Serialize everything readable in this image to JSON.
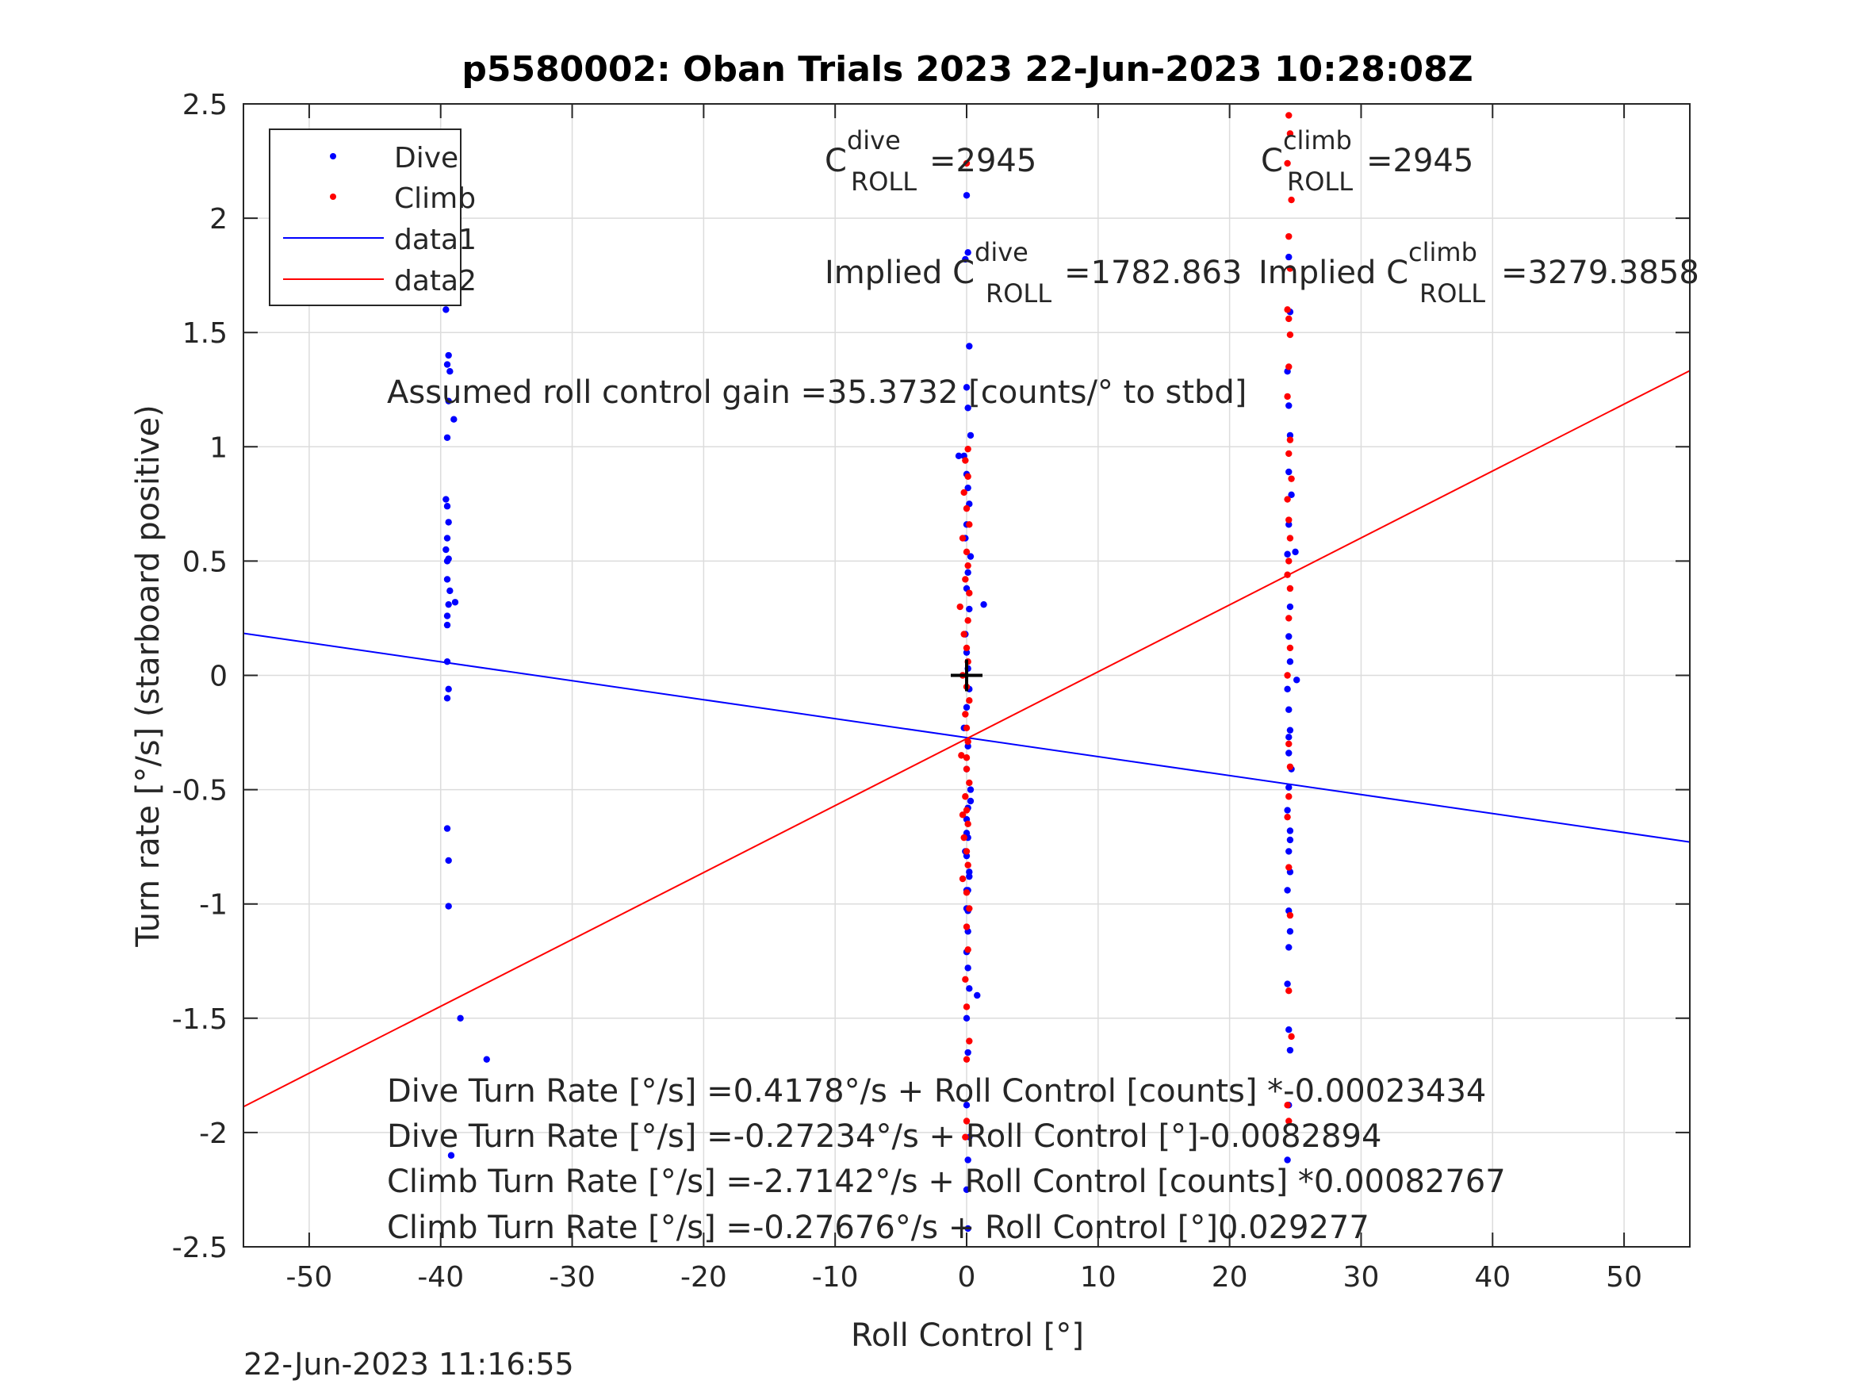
{
  "chart_data": {
    "type": "scatter",
    "title": "p5580002: Oban Trials 2023 22-Jun-2023 10:28:08Z",
    "xlabel": "Roll Control [°]",
    "ylabel": "Turn rate [°/s] (starboard positive)",
    "xlim": [
      -55,
      55
    ],
    "ylim": [
      -2.5,
      2.5
    ],
    "x_ticks": [
      -50,
      -40,
      -30,
      -20,
      -10,
      0,
      10,
      20,
      30,
      40,
      50
    ],
    "y_ticks": [
      -2.5,
      -2,
      -1.5,
      -1,
      -0.5,
      0,
      0.5,
      1,
      1.5,
      2,
      2.5
    ],
    "x_tick_labels": [
      "-50",
      "-40",
      "-30",
      "-20",
      "-10",
      "0",
      "10",
      "20",
      "30",
      "40",
      "50"
    ],
    "y_tick_labels": [
      "-2.5",
      "-2",
      "-1.5",
      "-1",
      "-0.5",
      "0",
      "0.5",
      "1",
      "1.5",
      "2",
      "2.5"
    ],
    "grid": true,
    "legend_position": "top-left",
    "colors": {
      "dive": "#0000ff",
      "climb": "#ff0000",
      "axes": "#262626",
      "grid": "#dcdcdc",
      "marker": "#000000"
    },
    "series": [
      {
        "name": "Dive",
        "kind": "points",
        "color": "#0000ff",
        "x": [
          -39.5,
          -39.5,
          -39.6,
          -39.4,
          -39.5,
          -39.3,
          -39.4,
          -39.5,
          -39.6,
          -39,
          -39.5,
          -39.4,
          -39.5,
          -39.6,
          -39.4,
          -39.5,
          -39.5,
          -39.3,
          -39.4,
          -38.9,
          -39.5,
          -39.5,
          -39.5,
          -39.4,
          -39.5,
          -39.5,
          -39.4,
          -39.4,
          -38.5,
          -36.5,
          -39.2,
          0,
          0.1,
          -0.1,
          0.2,
          0,
          0.1,
          0.3,
          -0.2,
          0,
          0.1,
          0.2,
          0,
          -0.1,
          0.3,
          0.1,
          0,
          0.2,
          -0.1,
          0,
          0.1,
          0.2,
          0,
          -0.2,
          0.1,
          0,
          0.3,
          0.1,
          0,
          -0.1,
          0.2,
          0,
          0.1,
          1.3,
          -0.6,
          0.8,
          0.1,
          0,
          0.1,
          0.2,
          0,
          0.1,
          0,
          0.2,
          0.1,
          0,
          0.1,
          0.3,
          0,
          0.1,
          0,
          0.2,
          0.1,
          0,
          24.5,
          24.6,
          24.4,
          24.5,
          24.6,
          24.5,
          24.7,
          24.5,
          24.4,
          24.6,
          24.5,
          24.6,
          24.4,
          24.5,
          24.6,
          24.5,
          24.7,
          24.5,
          24.4,
          24.6,
          25,
          25.1,
          24.5,
          24.6,
          24.4,
          24.5,
          24.6,
          24.5,
          24.4,
          24.5,
          24.6,
          24.5,
          24.4,
          24.5,
          24.6
        ],
        "y": [
          1.9,
          1.68,
          1.6,
          1.4,
          1.36,
          1.33,
          1.2,
          1.04,
          0.77,
          1.12,
          0.74,
          0.67,
          0.6,
          0.55,
          0.51,
          0.5,
          0.42,
          0.37,
          0.31,
          0.32,
          0.26,
          0.22,
          0.06,
          -0.06,
          -0.1,
          -0.67,
          -0.81,
          -1.01,
          -1.5,
          -1.68,
          -2.1,
          2.1,
          1.85,
          1.82,
          1.44,
          1.26,
          1.17,
          1.05,
          0.96,
          0.88,
          0.82,
          0.75,
          0.66,
          0.6,
          0.52,
          0.45,
          0.38,
          0.29,
          0.18,
          0.1,
          0.03,
          -0.06,
          -0.14,
          -0.23,
          -0.31,
          -0.41,
          -0.5,
          -0.58,
          -0.69,
          -0.77,
          -0.86,
          -0.94,
          -1.03,
          0.31,
          0.96,
          -1.4,
          -1.12,
          -1.21,
          -1.28,
          -1.37,
          -1.5,
          -1.65,
          -1.88,
          -2.02,
          -2.12,
          -2.25,
          -2.42,
          -0.55,
          -0.63,
          -0.71,
          -0.79,
          -0.88,
          -0.94,
          -1.02,
          1.83,
          1.59,
          1.33,
          1.18,
          1.05,
          0.89,
          0.79,
          0.66,
          0.53,
          0.3,
          0.17,
          0.06,
          -0.06,
          -0.15,
          -0.24,
          -0.34,
          -0.41,
          -0.49,
          -0.59,
          -0.68,
          0.54,
          -0.02,
          -0.77,
          -0.86,
          -0.94,
          -1.03,
          -1.12,
          -1.19,
          -1.35,
          -1.55,
          -1.64,
          -1.88,
          -2.12,
          -0.27,
          -0.72
        ]
      },
      {
        "name": "Climb",
        "kind": "points",
        "color": "#ff0000",
        "x": [
          0,
          -0.1,
          0.1,
          -0.2,
          0,
          0.2,
          -0.3,
          0,
          0.1,
          -0.1,
          0.2,
          -0.5,
          0.1,
          -0.2,
          0,
          0.1,
          -0.3,
          0,
          0.2,
          -0.1,
          0,
          0.1,
          -0.4,
          0,
          0.2,
          -0.1,
          0,
          0.1,
          -0.2,
          0,
          0.1,
          -0.3,
          0,
          0.2,
          0,
          0.1,
          -0.1,
          0,
          0.2,
          0,
          -0.3,
          0,
          0.1,
          0,
          -0.1,
          24.5,
          24.6,
          24.4,
          24.7,
          24.5,
          24.6,
          24.4,
          24.5,
          24.6,
          24.5,
          24.4,
          24.6,
          24.5,
          24.7,
          24.4,
          24.5,
          24.6,
          24.5,
          24.4,
          24.6,
          24.5,
          24.6,
          24.4,
          24.5,
          24.6,
          24.5,
          24.4,
          24.5,
          24.6,
          24.5,
          24.7,
          24.4,
          24.5
        ],
        "y": [
          2.24,
          0.94,
          0.87,
          0.8,
          0.73,
          0.66,
          0.6,
          0.54,
          0.48,
          0.42,
          0.36,
          0.3,
          0.24,
          0.18,
          0.12,
          0.06,
          0.0,
          -0.05,
          -0.11,
          -0.17,
          -0.23,
          -0.29,
          -0.35,
          -0.41,
          -0.47,
          -0.53,
          -0.59,
          -0.65,
          -0.71,
          -0.77,
          -0.83,
          -0.89,
          -0.95,
          -1.02,
          -1.1,
          -1.2,
          -1.33,
          -1.45,
          -1.6,
          -1.68,
          -0.61,
          -0.36,
          0.99,
          -1.95,
          -2.02,
          2.45,
          2.37,
          2.24,
          2.08,
          1.92,
          1.78,
          1.6,
          1.56,
          1.49,
          1.35,
          1.22,
          1.03,
          0.97,
          0.86,
          0.77,
          0.68,
          0.6,
          0.5,
          0.44,
          0.38,
          0.25,
          0.12,
          0.0,
          -0.3,
          -0.4,
          -0.53,
          -0.62,
          -0.84,
          -1.05,
          -1.38,
          -1.58,
          -1.88,
          -1.95
        ]
      },
      {
        "name": "data1",
        "kind": "line",
        "color": "#0000ff",
        "x": [
          -55,
          55
        ],
        "y": [
          0.184,
          -0.729
        ]
      },
      {
        "name": "data2",
        "kind": "line",
        "color": "#ff0000",
        "x": [
          -55,
          55
        ],
        "y": [
          -1.887,
          1.333
        ]
      }
    ],
    "annotations": {
      "c_dive": {
        "base": "C",
        "sup": "dive",
        "sub": "ROLL",
        "value": "=2945"
      },
      "c_climb": {
        "base": "C",
        "sup": "climb",
        "sub": "ROLL",
        "value": "=2945"
      },
      "implied_dive": {
        "prefix": "Implied C",
        "sup": "dive",
        "sub": "ROLL",
        "value": "=1782.863"
      },
      "implied_climb": {
        "prefix": "Implied C",
        "sup": "climb",
        "sub": "ROLL",
        "value": "=3279.3858"
      },
      "gain": "Assumed roll control gain =35.3732 [counts/° to stbd]",
      "fit_lines": [
        "Dive Turn Rate [°/s] =0.4178°/s + Roll Control [counts] *-0.00023434",
        "Dive Turn Rate [°/s] =-0.27234°/s + Roll Control [°]-0.0082894",
        "Climb Turn Rate [°/s] =-2.7142°/s + Roll Control [counts] *0.00082767",
        "Climb Turn Rate [°/s] =-0.27676°/s + Roll Control [°]0.029277"
      ],
      "origin_marker": {
        "x": 0,
        "y": 0
      }
    },
    "timestamp": "22-Jun-2023 11:16:55"
  }
}
